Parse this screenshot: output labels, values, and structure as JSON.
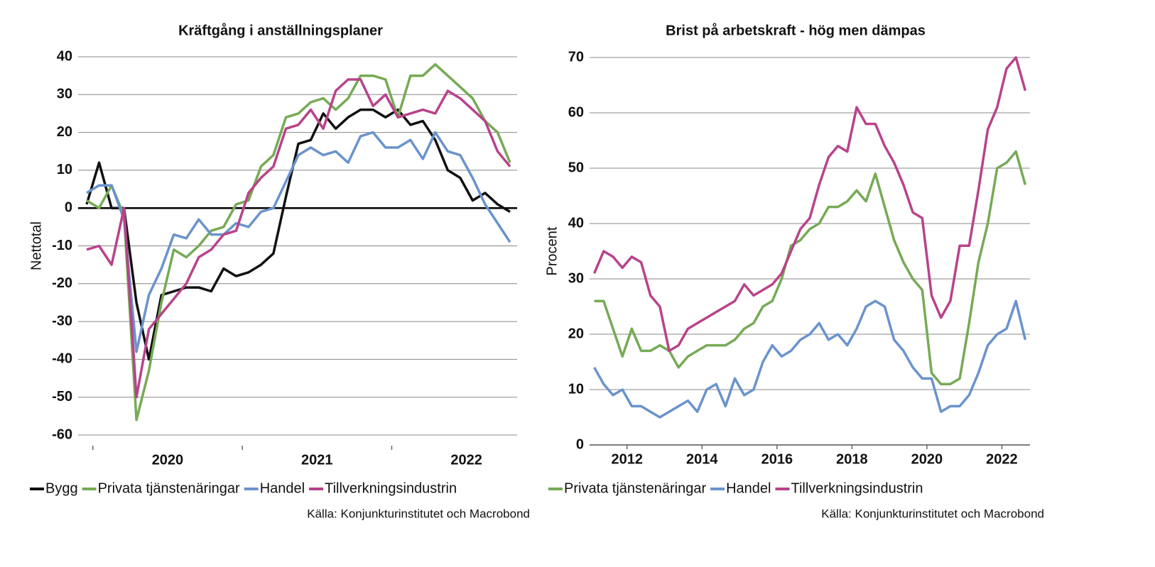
{
  "chart_data": [
    {
      "type": "line",
      "title": "Kräftgång i anställningsplaner",
      "y_label": "Nettotal",
      "source": "Källa: Konjunkturinstitutet och Macrobond",
      "categories": [
        null,
        null,
        null,
        null,
        null,
        null,
        "2020",
        null,
        null,
        null,
        null,
        null,
        null,
        null,
        null,
        null,
        null,
        null,
        "2021",
        null,
        null,
        null,
        null,
        null,
        null,
        null,
        null,
        null,
        null,
        null,
        "2022",
        null,
        null,
        null,
        null
      ],
      "ylim": [
        -60,
        40
      ],
      "yticks": [
        -60,
        -50,
        -40,
        -30,
        -20,
        -10,
        0,
        10,
        20,
        30,
        40
      ],
      "grid": true,
      "series": [
        {
          "name": "Bygg",
          "color": "#111111",
          "values": [
            1,
            12,
            0,
            0,
            -25,
            -40,
            -23,
            -22,
            -21,
            -21,
            -22,
            -16,
            -18,
            -17,
            -15,
            -12,
            3,
            17,
            18,
            25,
            21,
            24,
            26,
            26,
            24,
            26,
            22,
            23,
            18,
            10,
            8,
            2,
            4,
            1,
            -1
          ]
        },
        {
          "name": "Privata tjänstenäringar",
          "color": "#76aa55",
          "values": [
            2,
            0,
            6,
            -2,
            -56,
            -43,
            -25,
            -11,
            -13,
            -10,
            -6,
            -5,
            1,
            2,
            11,
            14,
            24,
            25,
            28,
            29,
            26,
            29,
            35,
            35,
            34,
            24,
            35,
            35,
            38,
            35,
            32,
            29,
            23,
            20,
            12
          ]
        },
        {
          "name": "Handel",
          "color": "#6a93cc",
          "values": [
            4,
            6,
            6,
            -3,
            -38,
            -23,
            -16,
            -7,
            -8,
            -3,
            -7,
            -7,
            -4,
            -5,
            -1,
            0,
            7,
            14,
            16,
            14,
            15,
            12,
            19,
            20,
            16,
            16,
            18,
            13,
            20,
            15,
            14,
            8,
            1,
            -4,
            -9
          ]
        },
        {
          "name": "Tillverkningsindustrin",
          "color": "#b8438a",
          "values": [
            -11,
            -10,
            -15,
            0,
            -50,
            -32,
            -28,
            -24,
            -20,
            -13,
            -11,
            -7,
            -6,
            4,
            8,
            11,
            21,
            22,
            26,
            21,
            31,
            34,
            34,
            27,
            30,
            24,
            25,
            26,
            25,
            31,
            29,
            26,
            23,
            15,
            11
          ]
        }
      ]
    },
    {
      "type": "line",
      "title": "Brist på arbetskraft - hög men dämpas",
      "y_label": "Procent",
      "source": "Källa: Konjunkturinstitutet och Macrobond",
      "x": [
        2011.125,
        2011.375,
        2011.625,
        2011.875,
        2012.125,
        2012.375,
        2012.625,
        2012.875,
        2013.125,
        2013.375,
        2013.625,
        2013.875,
        2014.125,
        2014.375,
        2014.625,
        2014.875,
        2015.125,
        2015.375,
        2015.625,
        2015.875,
        2016.125,
        2016.375,
        2016.625,
        2016.875,
        2017.125,
        2017.375,
        2017.625,
        2017.875,
        2018.125,
        2018.375,
        2018.625,
        2018.875,
        2019.125,
        2019.375,
        2019.625,
        2019.875,
        2020.125,
        2020.375,
        2020.625,
        2020.875,
        2021.125,
        2021.375,
        2021.625,
        2021.875,
        2022.125,
        2022.375,
        2022.625
      ],
      "xlim": [
        2011,
        2022.75
      ],
      "xticks": [
        2012,
        2014,
        2016,
        2018,
        2020,
        2022
      ],
      "ylim": [
        0,
        70
      ],
      "yticks": [
        0,
        10,
        20,
        30,
        40,
        50,
        60,
        70
      ],
      "grid": true,
      "series": [
        {
          "name": "Privata tjänstenäringar",
          "color": "#76aa55",
          "values": [
            26,
            26,
            21,
            16,
            21,
            17,
            17,
            18,
            17,
            14,
            16,
            17,
            18,
            18,
            18,
            19,
            21,
            22,
            25,
            26,
            30,
            36,
            37,
            39,
            40,
            43,
            43,
            44,
            46,
            44,
            49,
            43,
            37,
            33,
            30,
            28,
            13,
            11,
            11,
            12,
            22,
            33,
            40,
            50,
            51,
            53,
            47
          ]
        },
        {
          "name": "Handel",
          "color": "#6a93cc",
          "values": [
            14,
            11,
            9,
            10,
            7,
            7,
            6,
            5,
            6,
            7,
            8,
            6,
            10,
            11,
            7,
            12,
            9,
            10,
            15,
            18,
            16,
            17,
            19,
            20,
            22,
            19,
            20,
            18,
            21,
            25,
            26,
            25,
            19,
            17,
            14,
            12,
            12,
            6,
            7,
            7,
            9,
            13,
            18,
            20,
            21,
            26,
            19
          ]
        },
        {
          "name": "Tillverkningsindustrin",
          "color": "#b8438a",
          "values": [
            31,
            35,
            34,
            32,
            34,
            33,
            27,
            25,
            17,
            18,
            21,
            22,
            23,
            24,
            25,
            26,
            29,
            27,
            28,
            29,
            31,
            35,
            39,
            41,
            47,
            52,
            54,
            53,
            61,
            58,
            58,
            54,
            51,
            47,
            42,
            41,
            27,
            23,
            26,
            36,
            36,
            46,
            57,
            61,
            68,
            70,
            64
          ]
        }
      ]
    }
  ]
}
